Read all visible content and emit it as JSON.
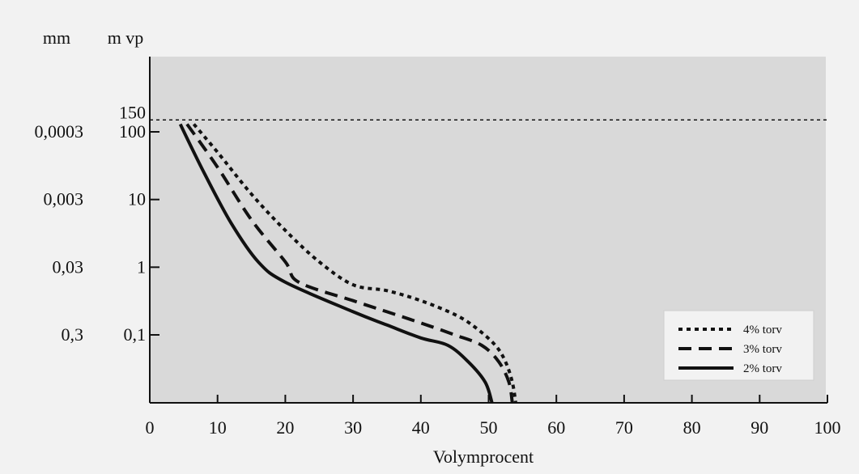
{
  "chart_data": {
    "type": "line",
    "xlabel": "Volymprocent",
    "xlim": [
      0,
      100
    ],
    "x_ticks": [
      0,
      10,
      20,
      30,
      40,
      50,
      60,
      70,
      80,
      90,
      100
    ],
    "y_scale": "log",
    "y_unit_label": "m vp",
    "y_ticks": [
      {
        "value": 0.1,
        "label": "0,1"
      },
      {
        "value": 1,
        "label": "1"
      },
      {
        "value": 10,
        "label": "10"
      },
      {
        "value": 100,
        "label": "100"
      },
      {
        "value": 150,
        "label": "150"
      }
    ],
    "secondary_y_unit_label": "mm",
    "secondary_y_ticks": [
      {
        "at_value": 0.1,
        "label": "0,3"
      },
      {
        "at_value": 1,
        "label": "0,03"
      },
      {
        "at_value": 10,
        "label": "0,003"
      },
      {
        "at_value": 100,
        "label": "0,0003"
      }
    ],
    "reference_line": {
      "y": 150,
      "style": "dotted"
    },
    "grid": false,
    "legend_position": "bottom-right",
    "series": [
      {
        "name": "4% torv",
        "line_style": "dotted",
        "points": [
          [
            6.5,
            130
          ],
          [
            10,
            50
          ],
          [
            15,
            12
          ],
          [
            20,
            3.5
          ],
          [
            25,
            1.2
          ],
          [
            30,
            0.55
          ],
          [
            35,
            0.45
          ],
          [
            40,
            0.32
          ],
          [
            45,
            0.2
          ],
          [
            48,
            0.13
          ],
          [
            51,
            0.07
          ],
          [
            52.5,
            0.04
          ],
          [
            53.5,
            0.02
          ],
          [
            54,
            0.01
          ]
        ]
      },
      {
        "name": "3% torv",
        "line_style": "dashed",
        "points": [
          [
            5.5,
            130
          ],
          [
            10,
            30
          ],
          [
            15,
            5
          ],
          [
            20,
            1.2
          ],
          [
            22,
            0.6
          ],
          [
            30,
            0.32
          ],
          [
            35,
            0.22
          ],
          [
            40,
            0.15
          ],
          [
            45,
            0.1
          ],
          [
            49,
            0.07
          ],
          [
            51.5,
            0.04
          ],
          [
            53,
            0.02
          ],
          [
            53.5,
            0.01
          ]
        ]
      },
      {
        "name": "2% torv",
        "line_style": "solid",
        "points": [
          [
            4.5,
            130
          ],
          [
            8,
            25
          ],
          [
            12,
            4.5
          ],
          [
            16,
            1.2
          ],
          [
            20,
            0.6
          ],
          [
            30,
            0.22
          ],
          [
            35,
            0.14
          ],
          [
            40,
            0.09
          ],
          [
            44,
            0.07
          ],
          [
            47,
            0.04
          ],
          [
            49.5,
            0.02
          ],
          [
            50.5,
            0.01
          ]
        ]
      }
    ]
  }
}
